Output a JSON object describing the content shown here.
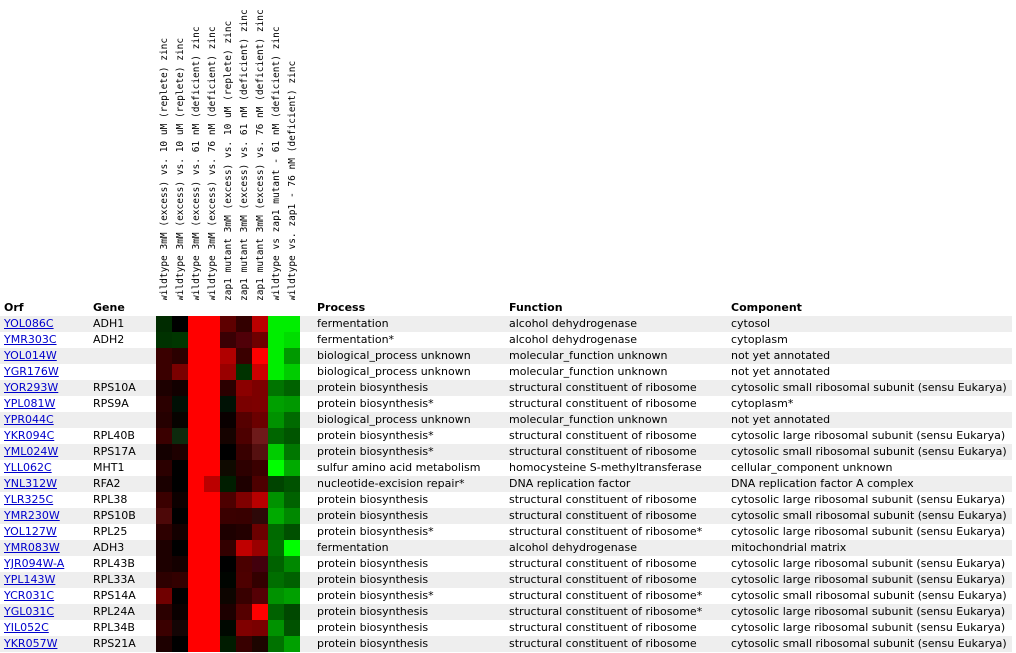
{
  "page": {
    "background": "#ffffff",
    "link_color": "#0000cc",
    "row_alt_color": "#eeeeee"
  },
  "table": {
    "headers": {
      "orf": "Orf",
      "gene": "Gene",
      "process": "Process",
      "function": "Function",
      "component": "Component"
    },
    "rows": [
      {
        "orf": "YOL086C",
        "gene": "ADH1",
        "process": "fermentation",
        "function": "alcohol dehydrogenase",
        "component": "cytosol"
      },
      {
        "orf": "YMR303C",
        "gene": "ADH2",
        "process": "fermentation*",
        "function": "alcohol dehydrogenase",
        "component": "cytoplasm"
      },
      {
        "orf": "YOL014W",
        "gene": "",
        "process": "biological_process unknown",
        "function": "molecular_function unknown",
        "component": "not yet annotated"
      },
      {
        "orf": "YGR176W",
        "gene": "",
        "process": "biological_process unknown",
        "function": "molecular_function unknown",
        "component": "not yet annotated"
      },
      {
        "orf": "YOR293W",
        "gene": "RPS10A",
        "process": "protein biosynthesis",
        "function": "structural constituent of ribosome",
        "component": "cytosolic small ribosomal subunit (sensu Eukarya)"
      },
      {
        "orf": "YPL081W",
        "gene": "RPS9A",
        "process": "protein biosynthesis*",
        "function": "structural constituent of ribosome",
        "component": "cytoplasm*"
      },
      {
        "orf": "YPR044C",
        "gene": "",
        "process": "biological_process unknown",
        "function": "molecular_function unknown",
        "component": "not yet annotated"
      },
      {
        "orf": "YKR094C",
        "gene": "RPL40B",
        "process": "protein biosynthesis*",
        "function": "structural constituent of ribosome",
        "component": "cytosolic large ribosomal subunit (sensu Eukarya)"
      },
      {
        "orf": "YML024W",
        "gene": "RPS17A",
        "process": "protein biosynthesis*",
        "function": "structural constituent of ribosome",
        "component": "cytosolic small ribosomal subunit (sensu Eukarya)"
      },
      {
        "orf": "YLL062C",
        "gene": "MHT1",
        "process": "sulfur amino acid metabolism",
        "function": "homocysteine S-methyltransferase",
        "component": "cellular_component unknown"
      },
      {
        "orf": "YNL312W",
        "gene": "RFA2",
        "process": "nucleotide-excision repair*",
        "function": "DNA replication factor",
        "component": "DNA replication factor A complex"
      },
      {
        "orf": "YLR325C",
        "gene": "RPL38",
        "process": "protein biosynthesis",
        "function": "structural constituent of ribosome",
        "component": "cytosolic large ribosomal subunit (sensu Eukarya)"
      },
      {
        "orf": "YMR230W",
        "gene": "RPS10B",
        "process": "protein biosynthesis",
        "function": "structural constituent of ribosome",
        "component": "cytosolic small ribosomal subunit (sensu Eukarya)"
      },
      {
        "orf": "YOL127W",
        "gene": "RPL25",
        "process": "protein biosynthesis*",
        "function": "structural constituent of ribosome*",
        "component": "cytosolic large ribosomal subunit (sensu Eukarya)"
      },
      {
        "orf": "YMR083W",
        "gene": "ADH3",
        "process": "fermentation",
        "function": "alcohol dehydrogenase",
        "component": "mitochondrial matrix"
      },
      {
        "orf": "YJR094W-A",
        "gene": "RPL43B",
        "process": "protein biosynthesis",
        "function": "structural constituent of ribosome",
        "component": "cytosolic large ribosomal subunit (sensu Eukarya)"
      },
      {
        "orf": "YPL143W",
        "gene": "RPL33A",
        "process": "protein biosynthesis",
        "function": "structural constituent of ribosome",
        "component": "cytosolic large ribosomal subunit (sensu Eukarya)"
      },
      {
        "orf": "YCR031C",
        "gene": "RPS14A",
        "process": "protein biosynthesis*",
        "function": "structural constituent of ribosome*",
        "component": "cytosolic small ribosomal subunit (sensu Eukarya)"
      },
      {
        "orf": "YGL031C",
        "gene": "RPL24A",
        "process": "protein biosynthesis",
        "function": "structural constituent of ribosome*",
        "component": "cytosolic large ribosomal subunit (sensu Eukarya)"
      },
      {
        "orf": "YIL052C",
        "gene": "RPL34B",
        "process": "protein biosynthesis",
        "function": "structural constituent of ribosome",
        "component": "cytosolic large ribosomal subunit (sensu Eukarya)"
      },
      {
        "orf": "YKR057W",
        "gene": "RPS21A",
        "process": "protein biosynthesis",
        "function": "structural constituent of ribosome",
        "component": "cytosolic small ribosomal subunit (sensu Eukarya)"
      }
    ]
  },
  "chart_data": {
    "type": "heatmap",
    "legend_position": "rotated column headers above heatmap",
    "columns": [
      "wildtype 3mM (excess) vs. 10 uM (replete) zinc",
      "wildtype 3mM (excess) vs. 10 uM (replete) zinc",
      "wildtype 3mM (excess) vs. 61 nM (deficient) zinc",
      "wildtype 3mM (excess) vs. 76 nM (deficient) zinc",
      "zap1 mutant 3mM (excess) vs. 10 uM (replete) zinc",
      "zap1 mutant 3mM (excess) vs. 61 nM (deficient) zinc",
      "zap1 mutant 3mM (excess) vs. 76 nM (deficient) zinc",
      "wildtype vs zap1 mutant - 61 nM (deficient) zinc",
      "wildtype vs. zap1 - 76 nM (deficient) zinc"
    ],
    "rows": [
      "YOL086C",
      "YMR303C",
      "YOL014W",
      "YGR176W",
      "YOR293W",
      "YPL081W",
      "YPR044C",
      "YKR094C",
      "YML024W",
      "YLL062C",
      "YNL312W",
      "YLR325C",
      "YMR230W",
      "YOL127W",
      "YMR083W",
      "YJR094W-A",
      "YPL143W",
      "YCR031C",
      "YGL031C",
      "YIL052C",
      "YKR057W"
    ],
    "cell_colors": [
      [
        "#002b00",
        "#000000",
        "#ff0000",
        "#ff0000",
        "#5e0000",
        "#330000",
        "#bb0000",
        "#00ee00",
        "#00ee00"
      ],
      [
        "#003200",
        "#003600",
        "#ff0000",
        "#ff0000",
        "#3a0004",
        "#500008",
        "#6e0000",
        "#00ee00",
        "#00dd00"
      ],
      [
        "#3a0000",
        "#2b0000",
        "#ff0000",
        "#ff0000",
        "#b00000",
        "#3a0000",
        "#ff0000",
        "#00ee00",
        "#009900"
      ],
      [
        "#3a0000",
        "#7a0000",
        "#ff0000",
        "#ff0000",
        "#990000",
        "#003300",
        "#cc0000",
        "#00ee00",
        "#00cc00"
      ],
      [
        "#1d0000",
        "#120000",
        "#ff0000",
        "#ff0000",
        "#2b0000",
        "#8b0000",
        "#7d0000",
        "#007400",
        "#006200"
      ],
      [
        "#2b0000",
        "#001005",
        "#ff0000",
        "#ff0000",
        "#001205",
        "#7a0000",
        "#7d0000",
        "#00a000",
        "#009800"
      ],
      [
        "#250000",
        "#070300",
        "#ff0000",
        "#ff0000",
        "#0a0000",
        "#550000",
        "#6b0000",
        "#009200",
        "#006a00"
      ],
      [
        "#3a0000",
        "#0d2a0d",
        "#ff0000",
        "#ff0000",
        "#160300",
        "#4d0000",
        "#6e1a1a",
        "#006600",
        "#005500"
      ],
      [
        "#140000",
        "#1e0000",
        "#ff0000",
        "#ff0000",
        "#000000",
        "#380000",
        "#551010",
        "#00cc00",
        "#007700"
      ],
      [
        "#2b0000",
        "#000000",
        "#ff0000",
        "#ff0000",
        "#0f0a00",
        "#2d0000",
        "#3a0000",
        "#00ff00",
        "#00aa00"
      ],
      [
        "#1a0000",
        "#000000",
        "#ff0000",
        "#bb0000",
        "#001e00",
        "#1e0000",
        "#4d0000",
        "#004400",
        "#005200"
      ],
      [
        "#3a0000",
        "#0d0000",
        "#ff0000",
        "#ff0000",
        "#4d0000",
        "#800000",
        "#b80000",
        "#009200",
        "#006200"
      ],
      [
        "#4d0808",
        "#000000",
        "#ff0000",
        "#ff0000",
        "#3a0000",
        "#380000",
        "#2d0808",
        "#00aa00",
        "#008800"
      ],
      [
        "#2d0000",
        "#140000",
        "#ff0000",
        "#ff0000",
        "#1d0000",
        "#230000",
        "#6b0000",
        "#006a00",
        "#005000"
      ],
      [
        "#1d0000",
        "#000000",
        "#ff0000",
        "#ff0000",
        "#330000",
        "#c00000",
        "#990000",
        "#007000",
        "#00ff00"
      ],
      [
        "#1d0000",
        "#140000",
        "#ff0000",
        "#ff0000",
        "#000000",
        "#4a0000",
        "#42000d",
        "#006200",
        "#008800"
      ],
      [
        "#2d0000",
        "#330000",
        "#ff0000",
        "#ff0000",
        "#000500",
        "#4d0000",
        "#330000",
        "#006e00",
        "#006000"
      ],
      [
        "#700000",
        "#000000",
        "#ff0000",
        "#ff0000",
        "#0d0500",
        "#380000",
        "#550005",
        "#009200",
        "#00a000"
      ],
      [
        "#2b0000",
        "#0a0000",
        "#ff0000",
        "#ff0000",
        "#1d0000",
        "#550000",
        "#ff0000",
        "#006200",
        "#004800"
      ],
      [
        "#3a0000",
        "#140505",
        "#ff0000",
        "#ff0000",
        "#000800",
        "#800000",
        "#7a0000",
        "#009200",
        "#005200"
      ],
      [
        "#1d0000",
        "#000000",
        "#ff0000",
        "#ff0000",
        "#001c00",
        "#380000",
        "#1d0500",
        "#007200",
        "#00a000"
      ]
    ]
  }
}
